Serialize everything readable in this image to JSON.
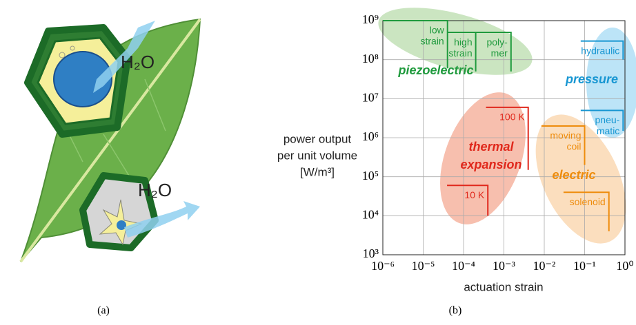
{
  "panel_a": {
    "labels": [
      "H₂O",
      "H₂O"
    ],
    "caption": "(a)"
  },
  "chart_data": {
    "type": "region-map",
    "caption": "(b)",
    "x_label": "actuation strain",
    "y_label": [
      "power output",
      "per unit volume",
      "[W/m³]"
    ],
    "log_x": true,
    "log_y": true,
    "grid": true,
    "xlim": [
      1e-06,
      1
    ],
    "ylim": [
      1000,
      1000000000
    ],
    "xticks": [
      {
        "value": 1e-06,
        "label": "10⁻⁶"
      },
      {
        "value": 1e-05,
        "label": "10⁻⁵"
      },
      {
        "value": 0.0001,
        "label": "10⁻⁴"
      },
      {
        "value": 0.001,
        "label": "10⁻³"
      },
      {
        "value": 0.01,
        "label": "10⁻²"
      },
      {
        "value": 0.1,
        "label": "10⁻¹"
      },
      {
        "value": 1,
        "label": "10⁰"
      }
    ],
    "yticks": [
      {
        "value": 1000,
        "label": "10³"
      },
      {
        "value": 10000,
        "label": "10⁴"
      },
      {
        "value": 100000,
        "label": "10⁵"
      },
      {
        "value": 1000000,
        "label": "10⁶"
      },
      {
        "value": 10000000,
        "label": "10⁷"
      },
      {
        "value": 100000000,
        "label": "10⁸"
      },
      {
        "value": 1000000000,
        "label": "10⁹"
      }
    ],
    "regions": [
      {
        "name": [
          "piezoelectric"
        ],
        "color": "#1f9a3d",
        "fill": "#a8d398",
        "items": [
          {
            "label": [
              "low",
              "strain"
            ],
            "x_start": 1e-06,
            "x": 4e-05,
            "y": 1000000000,
            "y_end": 60000000
          },
          {
            "label": [
              "high",
              "strain"
            ],
            "x_start": 4e-05,
            "x": 0.0002,
            "y": 500000000,
            "y_end": 50000000
          },
          {
            "label": [
              "poly-",
              "mer"
            ],
            "x_start": 0.0002,
            "x": 0.0015,
            "y": 500000000,
            "y_end": 50000000
          }
        ]
      },
      {
        "name": [
          "pressure"
        ],
        "color": "#1796d2",
        "fill": "#8fd2f2",
        "items": [
          {
            "label": [
              "hydraulic"
            ],
            "x_start": 0.08,
            "x": 0.9,
            "y": 300000000,
            "y_end": 100000000
          },
          {
            "label": [
              "pneu-",
              "matic"
            ],
            "x_start": 0.08,
            "x": 0.9,
            "y": 5000000,
            "y_end": 1500000
          }
        ]
      },
      {
        "name": [
          "thermal",
          "expansion"
        ],
        "color": "#e0281c",
        "fill": "#f29478",
        "items": [
          {
            "label": [
              "100 K"
            ],
            "x_start": 0.00036,
            "x": 0.004,
            "y": 6000000,
            "y_end": 150000
          },
          {
            "label": [
              "10 K"
            ],
            "x_start": 3.9e-05,
            "x": 0.0004,
            "y": 60000,
            "y_end": 10000
          }
        ]
      },
      {
        "name": [
          "electric"
        ],
        "color": "#ee8c0c",
        "fill": "#f9c893",
        "items": [
          {
            "label": [
              "moving",
              "coil"
            ],
            "x_start": 0.0085,
            "x": 0.1,
            "y": 2000000,
            "y_end": 200000
          },
          {
            "label": [
              "solenoid"
            ],
            "x_start": 0.03,
            "x": 0.4,
            "y": 40000,
            "y_end": 4000
          }
        ]
      }
    ]
  }
}
